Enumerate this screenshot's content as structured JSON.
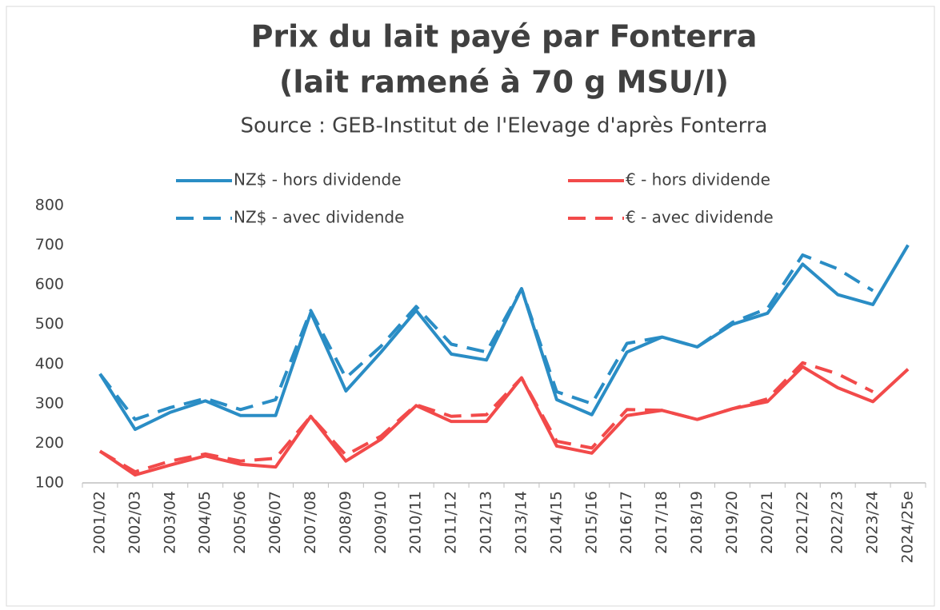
{
  "chart_data": {
    "type": "line",
    "title": [
      "Prix du lait payé par Fonterra",
      "(lait ramené à 70 g MSU/l)"
    ],
    "subtitle": "Source : GEB-Institut de l'Elevage d'après Fonterra",
    "categories": [
      "2001/02",
      "2002/03",
      "2003/04",
      "2004/05",
      "2005/06",
      "2006/07",
      "2007/08",
      "2008/09",
      "2009/10",
      "2010/11",
      "2011/12",
      "2012/13",
      "2013/14",
      "2014/15",
      "2015/16",
      "2016/17",
      "2017/18",
      "2018/19",
      "2019/20",
      "2020/21",
      "2021/22",
      "2022/23",
      "2023/24",
      "2024/25e"
    ],
    "series": [
      {
        "name": "NZ$ - hors dividende",
        "color": "#2a8dc5",
        "dash": false,
        "values": [
          375,
          235,
          278,
          307,
          270,
          270,
          530,
          332,
          430,
          535,
          425,
          410,
          590,
          310,
          272,
          430,
          468,
          443,
          500,
          528,
          652,
          575,
          550,
          700
        ]
      },
      {
        "name": "€ - hors dividende",
        "color": "#f24a4a",
        "dash": false,
        "values": [
          180,
          120,
          145,
          168,
          147,
          140,
          268,
          155,
          210,
          295,
          255,
          255,
          365,
          193,
          175,
          270,
          283,
          260,
          287,
          305,
          393,
          340,
          305,
          387
        ]
      },
      {
        "name": "NZ$ - avec dividende",
        "color": "#2a8dc5",
        "dash": true,
        "values": [
          375,
          260,
          290,
          313,
          285,
          310,
          535,
          365,
          445,
          545,
          450,
          430,
          590,
          330,
          300,
          452,
          468,
          443,
          505,
          540,
          675,
          640,
          585,
          null
        ]
      },
      {
        "name": "€ - avec dividende",
        "color": "#f24a4a",
        "dash": true,
        "values": [
          180,
          128,
          155,
          173,
          155,
          162,
          268,
          170,
          218,
          297,
          268,
          272,
          365,
          205,
          188,
          285,
          283,
          260,
          287,
          312,
          403,
          375,
          330,
          null
        ]
      }
    ],
    "ylim": [
      100,
      800
    ],
    "yticks": [
      100,
      200,
      300,
      400,
      500,
      600,
      700,
      800
    ],
    "grid": false,
    "legend": "top"
  }
}
